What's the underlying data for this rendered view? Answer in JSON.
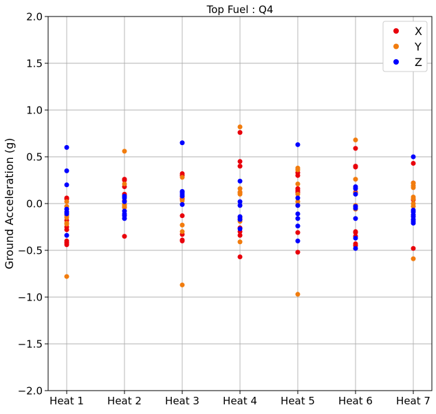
{
  "chart_data": {
    "type": "scatter",
    "title": "Top Fuel  : Q4",
    "ylabel": "Ground Acceleration (g)",
    "xlabel": "",
    "categories": [
      "Heat 1",
      "Heat 2",
      "Heat 3",
      "Heat 4",
      "Heat 5",
      "Heat 6",
      "Heat 7"
    ],
    "ylim": [
      -2.0,
      2.0
    ],
    "yticks": [
      -2.0,
      -1.5,
      -1.0,
      -0.5,
      0.0,
      0.5,
      1.0,
      1.5,
      2.0
    ],
    "ytick_labels": [
      "−2.0",
      "−1.5",
      "−1.0",
      "−0.5",
      "0.0",
      "0.5",
      "1.0",
      "1.5",
      "2.0"
    ],
    "grid": true,
    "legend_position": "top-right",
    "series": [
      {
        "name": "X",
        "color": "#e8000b",
        "points": [
          [
            0,
            0.06
          ],
          [
            0,
            0.05
          ],
          [
            0,
            -0.18
          ],
          [
            0,
            -0.25
          ],
          [
            0,
            -0.28
          ],
          [
            0,
            -0.4
          ],
          [
            0,
            -0.42
          ],
          [
            0,
            -0.44
          ],
          [
            1,
            0.26
          ],
          [
            1,
            0.25
          ],
          [
            1,
            0.18
          ],
          [
            1,
            0.1
          ],
          [
            1,
            0.03
          ],
          [
            1,
            -0.04
          ],
          [
            1,
            -0.35
          ],
          [
            2,
            0.32
          ],
          [
            2,
            0.3
          ],
          [
            2,
            0.05
          ],
          [
            2,
            -0.13
          ],
          [
            2,
            -0.33
          ],
          [
            2,
            -0.39
          ],
          [
            2,
            -0.4
          ],
          [
            3,
            0.76
          ],
          [
            3,
            0.45
          ],
          [
            3,
            0.4
          ],
          [
            3,
            0.12
          ],
          [
            3,
            -0.15
          ],
          [
            3,
            -0.26
          ],
          [
            3,
            -0.3
          ],
          [
            3,
            -0.34
          ],
          [
            3,
            -0.57
          ],
          [
            4,
            0.33
          ],
          [
            4,
            0.3
          ],
          [
            4,
            0.16
          ],
          [
            4,
            0.14
          ],
          [
            4,
            0.12
          ],
          [
            4,
            -0.31
          ],
          [
            4,
            -0.52
          ],
          [
            5,
            0.59
          ],
          [
            5,
            0.4
          ],
          [
            5,
            0.39
          ],
          [
            5,
            0.12
          ],
          [
            5,
            -0.3
          ],
          [
            5,
            -0.31
          ],
          [
            5,
            -0.35
          ],
          [
            5,
            -0.43
          ],
          [
            5,
            -0.45
          ],
          [
            6,
            0.43
          ],
          [
            6,
            0.22
          ],
          [
            6,
            0.04
          ],
          [
            6,
            -0.48
          ]
        ]
      },
      {
        "name": "Y",
        "color": "#f17c0e",
        "points": [
          [
            0,
            0.02
          ],
          [
            0,
            -0.03
          ],
          [
            0,
            -0.13
          ],
          [
            0,
            -0.15
          ],
          [
            0,
            -0.21
          ],
          [
            0,
            -0.22
          ],
          [
            0,
            -0.78
          ],
          [
            1,
            0.56
          ],
          [
            1,
            0.21
          ],
          [
            1,
            -0.01
          ],
          [
            1,
            -0.02
          ],
          [
            1,
            -0.04
          ],
          [
            2,
            0.28
          ],
          [
            2,
            0.07
          ],
          [
            2,
            0.03
          ],
          [
            2,
            -0.23
          ],
          [
            2,
            -0.3
          ],
          [
            2,
            -0.87
          ],
          [
            3,
            0.82
          ],
          [
            3,
            0.16
          ],
          [
            3,
            0.12
          ],
          [
            3,
            0.1
          ],
          [
            3,
            -0.15
          ],
          [
            3,
            -0.19
          ],
          [
            3,
            -0.41
          ],
          [
            4,
            0.38
          ],
          [
            4,
            0.36
          ],
          [
            4,
            0.21
          ],
          [
            4,
            0.1
          ],
          [
            4,
            0.02
          ],
          [
            4,
            -0.02
          ],
          [
            4,
            -0.97
          ],
          [
            5,
            0.68
          ],
          [
            5,
            0.26
          ],
          [
            5,
            0.11
          ],
          [
            5,
            -0.02
          ],
          [
            5,
            -0.06
          ],
          [
            6,
            0.22
          ],
          [
            6,
            0.19
          ],
          [
            6,
            0.17
          ],
          [
            6,
            0.07
          ],
          [
            6,
            0.05
          ],
          [
            6,
            0.0
          ],
          [
            6,
            -0.03
          ],
          [
            6,
            -0.59
          ]
        ]
      },
      {
        "name": "Z",
        "color": "#0000ff",
        "points": [
          [
            0,
            0.6
          ],
          [
            0,
            0.35
          ],
          [
            0,
            0.2
          ],
          [
            0,
            -0.06
          ],
          [
            0,
            -0.09
          ],
          [
            0,
            -0.11
          ],
          [
            0,
            -0.34
          ],
          [
            1,
            0.08
          ],
          [
            1,
            0.06
          ],
          [
            1,
            0.02
          ],
          [
            1,
            -0.08
          ],
          [
            1,
            -0.11
          ],
          [
            1,
            -0.13
          ],
          [
            1,
            -0.16
          ],
          [
            2,
            0.65
          ],
          [
            2,
            0.13
          ],
          [
            2,
            0.12
          ],
          [
            2,
            0.1
          ],
          [
            2,
            0.08
          ],
          [
            2,
            -0.01
          ],
          [
            3,
            0.24
          ],
          [
            3,
            0.02
          ],
          [
            3,
            -0.02
          ],
          [
            3,
            -0.14
          ],
          [
            3,
            -0.17
          ],
          [
            3,
            -0.27
          ],
          [
            4,
            0.63
          ],
          [
            4,
            0.06
          ],
          [
            4,
            -0.02
          ],
          [
            4,
            -0.11
          ],
          [
            4,
            -0.16
          ],
          [
            4,
            -0.24
          ],
          [
            4,
            -0.4
          ],
          [
            5,
            0.18
          ],
          [
            5,
            0.16
          ],
          [
            5,
            0.1
          ],
          [
            5,
            -0.03
          ],
          [
            5,
            -0.05
          ],
          [
            5,
            -0.16
          ],
          [
            5,
            -0.37
          ],
          [
            5,
            -0.48
          ],
          [
            6,
            0.5
          ],
          [
            6,
            -0.07
          ],
          [
            6,
            -0.09
          ],
          [
            6,
            -0.12
          ],
          [
            6,
            -0.14
          ],
          [
            6,
            -0.17
          ],
          [
            6,
            -0.19
          ],
          [
            6,
            -0.21
          ]
        ]
      }
    ]
  }
}
